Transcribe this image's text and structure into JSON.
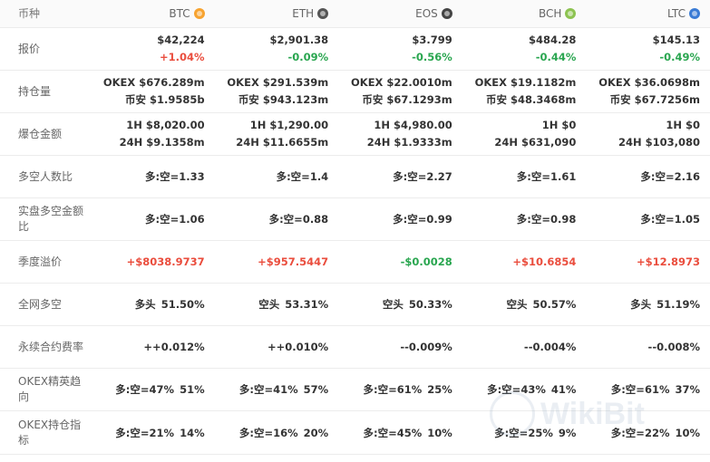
{
  "header": {
    "label": "币种",
    "coins": [
      {
        "name": "BTC",
        "icon": "btc-icon",
        "color": "#f7a330"
      },
      {
        "name": "ETH",
        "icon": "eth-icon",
        "color": "#555555"
      },
      {
        "name": "EOS",
        "icon": "eos-icon",
        "color": "#444444"
      },
      {
        "name": "BCH",
        "icon": "bch-icon",
        "color": "#8dc351"
      },
      {
        "name": "LTC",
        "icon": "ltc-icon",
        "color": "#3a7bd5"
      }
    ]
  },
  "rows": {
    "price": {
      "label": "报价",
      "cells": [
        {
          "price": "$42,224",
          "change": "+1.04%"
        },
        {
          "price": "$2,901.38",
          "change": "-0.09%"
        },
        {
          "price": "$3.799",
          "change": "-0.56%"
        },
        {
          "price": "$484.28",
          "change": "-0.44%"
        },
        {
          "price": "$145.13",
          "change": "-0.49%"
        }
      ]
    },
    "holdings": {
      "label": "持仓量",
      "cells": [
        {
          "l1": "OKEX  $676.289m",
          "l2": "币安  $1.9585b"
        },
        {
          "l1": "OKEX  $291.539m",
          "l2": "币安  $943.123m"
        },
        {
          "l1": "OKEX  $22.0010m",
          "l2": "币安  $67.1293m"
        },
        {
          "l1": "OKEX  $19.1182m",
          "l2": "币安  $48.3468m"
        },
        {
          "l1": "OKEX  $36.0698m",
          "l2": "币安  $67.7256m"
        }
      ]
    },
    "liquidation": {
      "label": "爆仓金额",
      "cells": [
        {
          "l1": "1H  $8,020.00",
          "l2": "24H  $9.1358m"
        },
        {
          "l1": "1H  $1,290.00",
          "l2": "24H  $11.6655m"
        },
        {
          "l1": "1H  $4,980.00",
          "l2": "24H  $1.9333m"
        },
        {
          "l1": "1H  $0",
          "l2": "24H  $631,090"
        },
        {
          "l1": "1H  $0",
          "l2": "24H  $103,080"
        }
      ]
    },
    "ls_count": {
      "label": "多空人数比",
      "cells": [
        "多:空=1.33",
        "多:空=1.4",
        "多:空=2.27",
        "多:空=1.61",
        "多:空=2.16"
      ]
    },
    "ls_amount": {
      "label": "实盘多空金额比",
      "cells": [
        "多:空=1.06",
        "多:空=0.88",
        "多:空=0.99",
        "多:空=0.98",
        "多:空=1.05"
      ]
    },
    "premium": {
      "label": "季度溢价",
      "cells": [
        {
          "value": "+$8038.9737",
          "dir": "up"
        },
        {
          "value": "+$957.5447",
          "dir": "up"
        },
        {
          "value": "-$0.0028",
          "dir": "down"
        },
        {
          "value": "+$10.6854",
          "dir": "up"
        },
        {
          "value": "+$12.8973",
          "dir": "up"
        }
      ]
    },
    "network": {
      "label": "全网多空",
      "cells": [
        {
          "side": "多头",
          "pct": "51.50%"
        },
        {
          "side": "空头",
          "pct": "53.31%"
        },
        {
          "side": "空头",
          "pct": "50.33%"
        },
        {
          "side": "空头",
          "pct": "50.57%"
        },
        {
          "side": "多头",
          "pct": "51.19%"
        }
      ]
    },
    "funding": {
      "label": "永续合约费率",
      "cells": [
        "++0.012%",
        "++0.010%",
        "--0.009%",
        "--0.004%",
        "--0.008%"
      ]
    },
    "elite": {
      "label": "OKEX精英趋向",
      "cells": [
        {
          "ratio": "多:空=47%",
          "pct": "51%"
        },
        {
          "ratio": "多:空=41%",
          "pct": "57%"
        },
        {
          "ratio": "多:空=61%",
          "pct": "25%"
        },
        {
          "ratio": "多:空=43%",
          "pct": "41%"
        },
        {
          "ratio": "多:空=61%",
          "pct": "37%"
        }
      ]
    },
    "position_index": {
      "label": "OKEX持仓指标",
      "cells": [
        {
          "ratio": "多:空=21%",
          "pct": "14%"
        },
        {
          "ratio": "多:空=16%",
          "pct": "20%"
        },
        {
          "ratio": "多:空=45%",
          "pct": "10%"
        },
        {
          "ratio": "多:空=25%",
          "pct": "9%"
        },
        {
          "ratio": "多:空=22%",
          "pct": "10%"
        }
      ]
    }
  },
  "watermark": {
    "text": "WikiBit"
  },
  "colors": {
    "up": "#ea4d3d",
    "down": "#2aa650",
    "header_bg": "#fafafa"
  }
}
